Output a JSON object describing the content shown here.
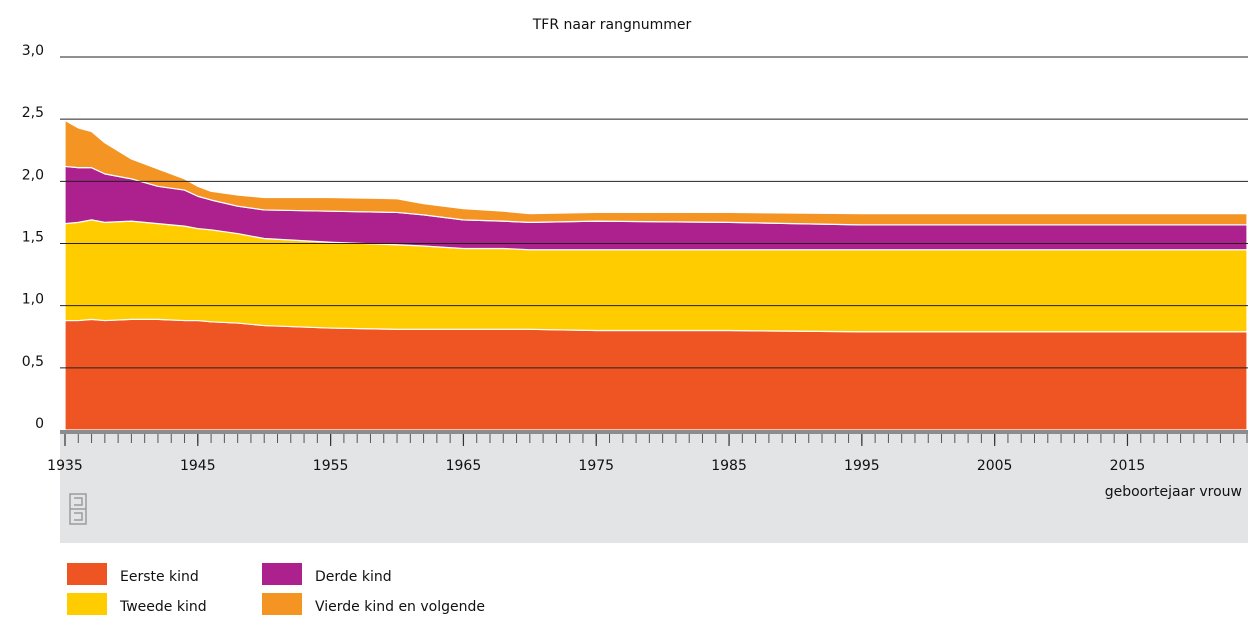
{
  "chart_data": {
    "type": "stacked_area",
    "title": "TFR naar rangnummer",
    "x_label": "geboortejaar vrouw",
    "x": [
      1935,
      1936,
      1937,
      1938,
      1940,
      1942,
      1944,
      1945,
      1946,
      1948,
      1950,
      1955,
      1960,
      1962,
      1965,
      1968,
      1970,
      1975,
      1985,
      1995,
      2005,
      2015,
      2024
    ],
    "series": [
      {
        "name": "Eerste kind",
        "color": "#ef5423",
        "values": [
          0.88,
          0.88,
          0.89,
          0.88,
          0.89,
          0.89,
          0.88,
          0.88,
          0.87,
          0.86,
          0.84,
          0.82,
          0.81,
          0.81,
          0.81,
          0.81,
          0.81,
          0.8,
          0.8,
          0.79,
          0.79,
          0.79,
          0.79
        ]
      },
      {
        "name": "Tweede kind",
        "color": "#ffcc00",
        "values": [
          0.78,
          0.79,
          0.8,
          0.79,
          0.79,
          0.77,
          0.76,
          0.74,
          0.74,
          0.72,
          0.7,
          0.69,
          0.68,
          0.67,
          0.65,
          0.65,
          0.64,
          0.65,
          0.65,
          0.66,
          0.66,
          0.66,
          0.66
        ]
      },
      {
        "name": "Derde kind",
        "color": "#ac218e",
        "values": [
          0.46,
          0.44,
          0.42,
          0.39,
          0.34,
          0.3,
          0.29,
          0.26,
          0.24,
          0.22,
          0.23,
          0.25,
          0.26,
          0.25,
          0.23,
          0.22,
          0.22,
          0.23,
          0.22,
          0.2,
          0.2,
          0.2,
          0.2
        ]
      },
      {
        "name": "Vierde kind en volgende",
        "color": "#f39423",
        "values": [
          0.37,
          0.32,
          0.29,
          0.25,
          0.16,
          0.14,
          0.09,
          0.08,
          0.07,
          0.09,
          0.1,
          0.11,
          0.11,
          0.09,
          0.09,
          0.08,
          0.07,
          0.07,
          0.08,
          0.09,
          0.09,
          0.09,
          0.09
        ]
      }
    ],
    "xlim": [
      1935,
      2024
    ],
    "xticks": [
      1935,
      1945,
      1955,
      1965,
      1975,
      1985,
      1995,
      2005,
      2015
    ],
    "x_minor_tick_interval": 1,
    "ylim": [
      0,
      3
    ],
    "yticks": [
      0,
      {
        "value": 0.5,
        "label": "0,5"
      },
      {
        "value": 1,
        "label": "1,0"
      },
      {
        "value": 1.5,
        "label": "1,5"
      },
      {
        "value": 2,
        "label": "2,0"
      },
      {
        "value": 2.5,
        "label": "2,5"
      },
      {
        "value": 3,
        "label": "3,0"
      }
    ],
    "grid": true
  }
}
